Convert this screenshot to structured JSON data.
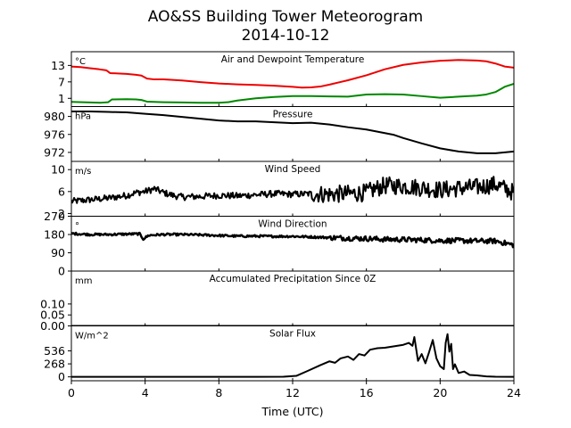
{
  "figure": {
    "title_line1": "AO&SS Building Tower Meteorogram",
    "title_line2": "2014-10-12",
    "xlabel": "Time (UTC)"
  },
  "chart_data": {
    "type": "line",
    "x_ticks": [
      0,
      4,
      8,
      12,
      16,
      20,
      24
    ],
    "x_tick_labels": [
      "0",
      "4",
      "8",
      "12",
      "16",
      "20",
      "24"
    ],
    "xlim": [
      0,
      24
    ],
    "panels": [
      {
        "id": "temperature",
        "title": "Air and Dewpoint Temperature",
        "unit": "°C",
        "ylim": [
          -2,
          18
        ],
        "y_ticks": [
          1,
          7,
          13
        ],
        "y_tick_labels": [
          "1",
          "7",
          "13"
        ],
        "noise": 0,
        "series": [
          {
            "color": "#ee0000",
            "width": 2,
            "x": [
              0,
              0.5,
              1,
              1.5,
              1.9,
              2.1,
              3,
              3.5,
              3.8,
              4.1,
              4.5,
              5,
              6,
              7,
              8,
              9,
              10,
              11,
              12,
              12.5,
              13,
              13.5,
              14,
              15,
              16,
              17,
              18,
              19,
              20,
              21,
              22,
              22.5,
              23,
              23.5,
              24
            ],
            "y": [
              12.6,
              12.4,
              12.0,
              11.6,
              11.2,
              10.2,
              9.9,
              9.6,
              9.3,
              8.2,
              7.9,
              7.9,
              7.5,
              6.9,
              6.4,
              6.1,
              5.9,
              5.6,
              5.2,
              4.9,
              5.0,
              5.3,
              6.0,
              7.6,
              9.4,
              11.6,
              13.2,
              14.1,
              14.7,
              15.0,
              14.8,
              14.5,
              13.7,
              12.6,
              12.2
            ]
          },
          {
            "color": "#008800",
            "width": 2,
            "x": [
              0,
              1,
              1.6,
              2,
              2.2,
              3,
              3.5,
              3.8,
              4.1,
              5,
              6,
              7,
              8,
              8.5,
              9,
              10,
              11,
              12,
              13,
              14,
              15,
              16,
              17,
              18,
              19,
              20,
              21,
              22,
              22.5,
              23,
              23.5,
              24
            ],
            "y": [
              -0.3,
              -0.5,
              -0.6,
              -0.4,
              0.6,
              0.7,
              0.6,
              0.4,
              -0.2,
              -0.4,
              -0.5,
              -0.6,
              -0.6,
              -0.4,
              0.2,
              1.0,
              1.5,
              1.8,
              1.8,
              1.7,
              1.6,
              2.4,
              2.5,
              2.4,
              1.8,
              1.2,
              1.6,
              2.0,
              2.4,
              3.3,
              5.2,
              6.3
            ]
          }
        ]
      },
      {
        "id": "pressure",
        "title": "Pressure",
        "unit": "hPa",
        "ylim": [
          970,
          982.2
        ],
        "y_ticks": [
          972,
          976,
          980
        ],
        "y_tick_labels": [
          "972",
          "976",
          "980"
        ],
        "noise": 0,
        "series": [
          {
            "color": "#000000",
            "width": 2,
            "x": [
              0,
              1,
              2,
              3,
              4,
              5,
              6,
              7,
              8,
              9,
              10,
              11,
              12,
              13,
              14,
              15,
              16,
              17,
              17.5,
              18,
              19,
              20,
              21,
              22,
              23,
              24
            ],
            "y": [
              981.1,
              981.1,
              981.0,
              980.9,
              980.6,
              980.3,
              979.9,
              979.5,
              979.1,
              978.9,
              978.9,
              978.7,
              978.5,
              978.6,
              978.2,
              977.6,
              977.1,
              976.3,
              975.9,
              975.2,
              974.0,
              972.9,
              972.2,
              971.8,
              971.8,
              972.2
            ]
          }
        ]
      },
      {
        "id": "wind_speed",
        "title": "Wind Speed",
        "unit": "m/s",
        "ylim": [
          1.5,
          11.5
        ],
        "y_ticks": [
          2,
          6,
          10
        ],
        "y_tick_labels": [
          "2",
          "6",
          "10"
        ],
        "noise": 1.0,
        "series": [
          {
            "color": "#000000",
            "width": 2,
            "x": [
              0,
              1,
              2,
              3,
              3.5,
              4,
              4.5,
              5,
              5.5,
              6,
              7,
              8,
              9,
              10,
              11,
              12,
              13,
              14,
              15,
              16,
              16.5,
              17,
              18,
              19,
              20,
              21,
              22,
              23,
              24
            ],
            "y": [
              4.2,
              4.5,
              4.8,
              5.3,
              5.8,
              6.0,
              6.5,
              5.8,
              5.3,
              5.0,
              5.1,
              5.3,
              5.2,
              5.4,
              5.6,
              5.5,
              5.6,
              5.5,
              5.6,
              5.8,
              6.5,
              7.1,
              7.0,
              6.7,
              6.3,
              6.6,
              6.8,
              7.3,
              5.8
            ]
          }
        ]
      },
      {
        "id": "wind_direction",
        "title": "Wind Direction",
        "unit": "°",
        "ylim": [
          0,
          270
        ],
        "y_ticks": [
          0,
          90,
          180,
          270
        ],
        "y_tick_labels": [
          "0",
          "90",
          "180",
          "270"
        ],
        "noise": 9,
        "series": [
          {
            "color": "#000000",
            "width": 2.5,
            "x": [
              0,
              1,
              2,
              3,
              3.7,
              3.9,
              4.2,
              5,
              6,
              7,
              8,
              9,
              10,
              11,
              12,
              13,
              14,
              15,
              16,
              17,
              18,
              19,
              20,
              21,
              22,
              23,
              24
            ],
            "y": [
              185,
              180,
              180,
              182,
              183,
              158,
              176,
              180,
              180,
              178,
              175,
              172,
              172,
              171,
              171,
              168,
              165,
              162,
              160,
              156,
              155,
              153,
              150,
              150,
              148,
              148,
              128
            ]
          }
        ]
      },
      {
        "id": "precipitation",
        "title": "Accumulated Precipitation Since 0Z",
        "unit": "mm",
        "ylim": [
          0,
          0.25
        ],
        "y_ticks": [
          0.0,
          0.05,
          0.1
        ],
        "y_tick_labels": [
          "0.00",
          "0.05",
          "0.10"
        ],
        "noise": 0,
        "series": [
          {
            "color": "#000000",
            "width": 2,
            "x": [
              0,
              24
            ],
            "y": [
              0,
              0
            ]
          }
        ]
      },
      {
        "id": "solar_flux",
        "title": "Solar Flux",
        "unit": "W/m^2",
        "ylim": [
          -80,
          1050
        ],
        "y_ticks": [
          0,
          268,
          536
        ],
        "y_tick_labels": [
          "0",
          "268",
          "536"
        ],
        "noise": 0,
        "series": [
          {
            "color": "#000000",
            "width": 2,
            "x": [
              0,
              6,
              10,
              11.5,
              12.2,
              12.8,
              13.5,
              14,
              14.3,
              14.6,
              15,
              15.3,
              15.6,
              15.9,
              16.2,
              16.6,
              17,
              17.5,
              18,
              18.3,
              18.5,
              18.6,
              18.8,
              19.0,
              19.2,
              19.4,
              19.6,
              19.8,
              20.0,
              20.2,
              20.3,
              20.4,
              20.5,
              20.6,
              20.7,
              20.8,
              21.0,
              21.3,
              21.6,
              22,
              22.5,
              23,
              24
            ],
            "y": [
              0,
              0,
              0,
              2,
              20,
              120,
              240,
              320,
              290,
              380,
              420,
              350,
              470,
              440,
              560,
              590,
              600,
              630,
              660,
              700,
              640,
              820,
              330,
              470,
              280,
              510,
              760,
              380,
              220,
              160,
              700,
              880,
              520,
              680,
              160,
              260,
              80,
              110,
              40,
              30,
              10,
              3,
              0
            ]
          }
        ]
      }
    ]
  }
}
